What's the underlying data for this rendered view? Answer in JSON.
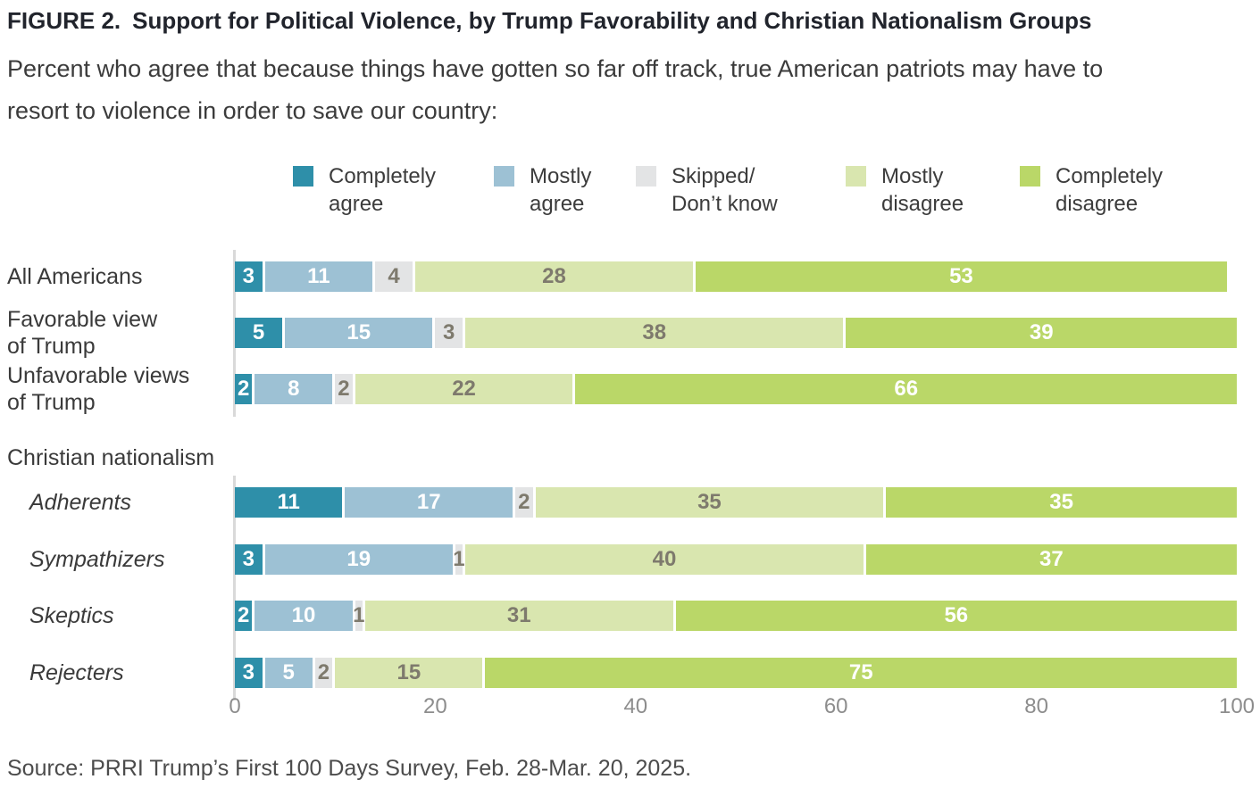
{
  "figure": {
    "label": "FIGURE 2.",
    "title": "Support for Political Violence, by Trump Favorability and Christian Nationalism Groups",
    "subtitle": "Percent who agree that because things have gotten so far off track, true American patriots may have to resort to violence in order to save our country:",
    "subtitle_lines": [
      "Percent who agree that because things have gotten so far off track, true American patriots may have to",
      "resort to violence in order to save our country:"
    ],
    "source": "Source: PRRI Trump’s First 100 Days Survey, Feb. 28-Mar. 20, 2025."
  },
  "chart_data": {
    "type": "bar",
    "stacked": true,
    "orientation": "horizontal",
    "xlim": [
      0,
      100
    ],
    "x_ticks": [
      0,
      20,
      40,
      60,
      80,
      100
    ],
    "grid": false,
    "legend_position": "top",
    "categories_header": "Christian nationalism",
    "legend": [
      {
        "label": "Completely agree",
        "label_lines": [
          "Completely",
          "agree"
        ],
        "color": "#2e8fa9",
        "text_color": "#ffffff"
      },
      {
        "label": "Mostly agree",
        "label_lines": [
          "Mostly",
          "agree"
        ],
        "color": "#9dc1d4",
        "text_color": "#ffffff"
      },
      {
        "label": "Skipped/Don’t know",
        "label_lines": [
          "Skipped/",
          "Don’t know"
        ],
        "color": "#e3e4e5",
        "text_color": "#7e7a6d"
      },
      {
        "label": "Mostly disagree",
        "label_lines": [
          "Mostly",
          "disagree"
        ],
        "color": "#d9e6af",
        "text_color": "#7e7a6d"
      },
      {
        "label": "Completely disagree",
        "label_lines": [
          "Completely",
          "disagree"
        ],
        "color": "#bad768",
        "text_color": "#ffffff"
      }
    ],
    "rows": [
      {
        "label": "All Americans",
        "label_lines": [
          "All Americans"
        ],
        "italic": false,
        "section": 0,
        "values": [
          3,
          11,
          4,
          28,
          53
        ]
      },
      {
        "label": "Favorable view of Trump",
        "label_lines": [
          "Favorable view",
          "of Trump"
        ],
        "italic": false,
        "section": 0,
        "values": [
          5,
          15,
          3,
          38,
          39
        ]
      },
      {
        "label": "Unfavorable views of Trump",
        "label_lines": [
          "Unfavorable views",
          "of Trump"
        ],
        "italic": false,
        "section": 0,
        "values": [
          2,
          8,
          2,
          22,
          66
        ]
      },
      {
        "label": "Adherents",
        "label_lines": [
          "Adherents"
        ],
        "italic": true,
        "section": 1,
        "values": [
          11,
          17,
          2,
          35,
          35
        ]
      },
      {
        "label": "Sympathizers",
        "label_lines": [
          "Sympathizers"
        ],
        "italic": true,
        "section": 1,
        "values": [
          3,
          19,
          1,
          40,
          37
        ]
      },
      {
        "label": "Skeptics",
        "label_lines": [
          "Skeptics"
        ],
        "italic": true,
        "section": 1,
        "values": [
          2,
          10,
          1,
          31,
          56
        ]
      },
      {
        "label": "Rejecters",
        "label_lines": [
          "Rejecters"
        ],
        "italic": true,
        "section": 1,
        "values": [
          3,
          5,
          2,
          15,
          75
        ]
      }
    ]
  }
}
